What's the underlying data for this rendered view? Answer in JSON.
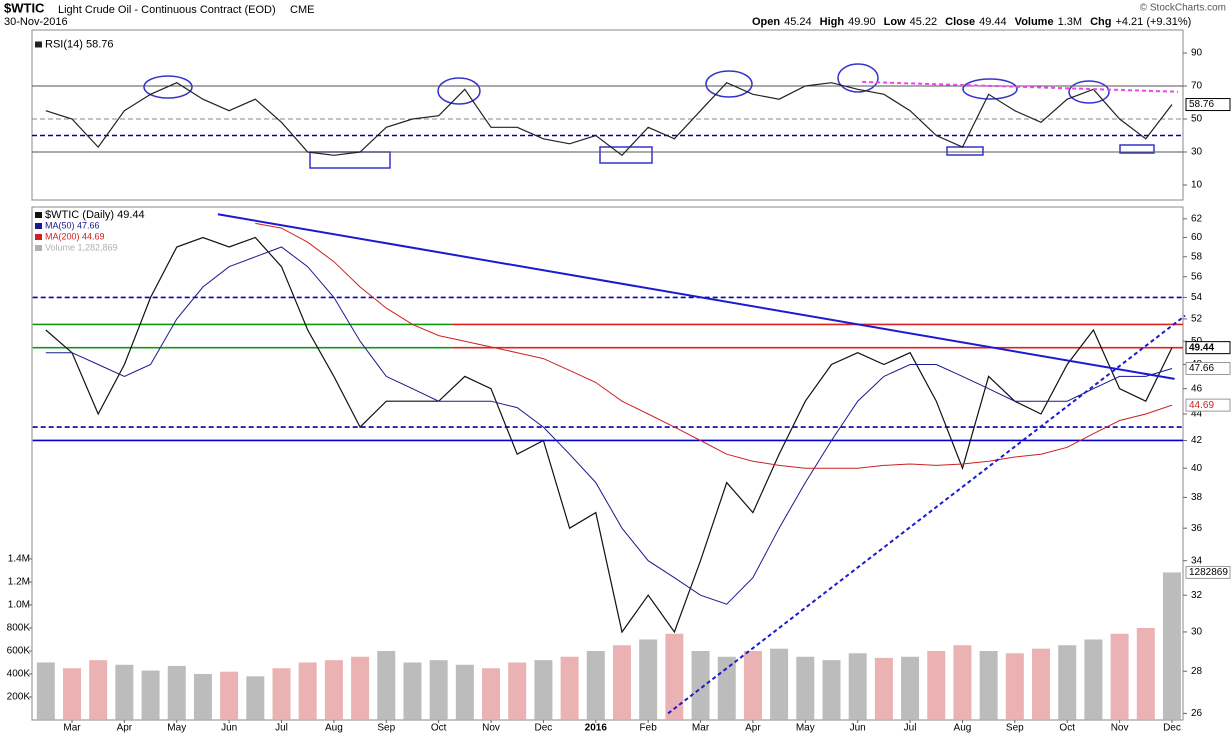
{
  "header": {
    "symbol": "$WTIC",
    "name": "Light Crude Oil - Continuous Contract (EOD)",
    "exchange": "CME",
    "date": "30-Nov-2016",
    "copyright": "© StockCharts.com",
    "quote": [
      {
        "label": "Open",
        "value": "45.24"
      },
      {
        "label": "High",
        "value": "49.90"
      },
      {
        "label": "Low",
        "value": "45.22"
      },
      {
        "label": "Close",
        "value": "49.44"
      },
      {
        "label": "Volume",
        "value": "1.3M"
      },
      {
        "label": "Chg",
        "value": "+4.21 (+9.31%)"
      }
    ]
  },
  "chart_data": [
    {
      "type": "line",
      "series": [
        {
          "name": "RSI(14) 58.76",
          "color": "#222222",
          "values": [
            55,
            50,
            33,
            55,
            65,
            72,
            62,
            55,
            62,
            48,
            30,
            28,
            30,
            45,
            50,
            52,
            68,
            45,
            45,
            38,
            35,
            40,
            28,
            45,
            38,
            55,
            72,
            65,
            62,
            70,
            72,
            68,
            65,
            55,
            40,
            33,
            65,
            55,
            48,
            62,
            68,
            50,
            38,
            58.76
          ]
        }
      ],
      "ylim": [
        0,
        100
      ],
      "yticks": [
        10,
        30,
        50,
        70,
        90
      ],
      "hlines": [
        {
          "value": 70,
          "color": "#555555",
          "dash": false
        },
        {
          "value": 30,
          "color": "#555555",
          "dash": false
        },
        {
          "value": 50,
          "color": "#888888",
          "dash": true
        },
        {
          "value": 40,
          "color": "#0000aa",
          "dash": true
        }
      ],
      "trendlines": [
        {
          "x": [
            31.17,
            43.23
          ],
          "values": [
            72.5,
            66.5
          ],
          "color": "#ee44ee",
          "dash": true
        }
      ]
    },
    {
      "type": "line",
      "log": true,
      "categories": [
        null,
        "Mar",
        null,
        "Apr",
        null,
        "May",
        null,
        "Jun",
        null,
        "Jul",
        null,
        "Aug",
        null,
        "Sep",
        null,
        "Oct",
        null,
        "Nov",
        null,
        "Dec",
        null,
        "2016",
        null,
        "Feb",
        null,
        "Mar",
        null,
        "Apr",
        null,
        "May",
        null,
        "Jun",
        null,
        "Jul",
        null,
        "Aug",
        null,
        "Sep",
        null,
        "Oct",
        null,
        "Nov",
        null,
        "Dec"
      ],
      "series": [
        {
          "name": "$WTIC (Daily) 49.44",
          "color": "#111111",
          "values": [
            51,
            49,
            44,
            48,
            54,
            59,
            60,
            59,
            60,
            57,
            51,
            47,
            43,
            45,
            45,
            45,
            47,
            46,
            41,
            42,
            36,
            37,
            30,
            32,
            30,
            34,
            39,
            37,
            41,
            45,
            48,
            49,
            48,
            49,
            45,
            40,
            47,
            45,
            44,
            48,
            51,
            46,
            45,
            49.44
          ]
        },
        {
          "name": "MA(50) 47.66",
          "color": "#1a1a8c",
          "values": [
            49,
            49,
            48,
            47,
            48,
            52,
            55,
            57,
            58,
            59,
            57,
            54,
            50,
            47,
            46,
            45,
            45,
            45,
            44.5,
            43,
            41,
            39,
            36,
            34,
            33,
            32,
            31.5,
            33,
            36,
            39,
            42,
            45,
            47,
            48,
            48,
            47,
            46,
            45,
            45,
            45,
            46,
            47,
            47,
            47.66
          ]
        },
        {
          "name": "MA(200) 44.69",
          "color": "#cc2222",
          "values": [
            null,
            null,
            null,
            null,
            null,
            null,
            null,
            null,
            61.5,
            61,
            59.5,
            57.5,
            55,
            53,
            51.5,
            50.5,
            50,
            49.5,
            49,
            48.5,
            47.5,
            46.5,
            45,
            44,
            43,
            42,
            41,
            40.5,
            40.2,
            40,
            40,
            40,
            40.2,
            40.3,
            40.2,
            40.3,
            40.5,
            40.8,
            41,
            41.5,
            42.5,
            43.5,
            44,
            44.69
          ]
        },
        {
          "name": "Volume 1,282,869",
          "color": "#b0b0b0",
          "axis": "y2",
          "style": "bar",
          "values": [
            500000,
            450000,
            520000,
            480000,
            430000,
            470000,
            400000,
            420000,
            380000,
            450000,
            500000,
            520000,
            550000,
            600000,
            500000,
            520000,
            480000,
            450000,
            500000,
            520000,
            550000,
            600000,
            650000,
            700000,
            750000,
            600000,
            550000,
            600000,
            620000,
            550000,
            520000,
            580000,
            540000,
            550000,
            600000,
            650000,
            600000,
            580000,
            620000,
            650000,
            700000,
            750000,
            800000,
            1282869
          ]
        }
      ],
      "ylim": [
        25.7,
        63.3
      ],
      "yticks": [
        26,
        28,
        30,
        32,
        34,
        36,
        38,
        40,
        42,
        44,
        46,
        48,
        50,
        52,
        54,
        56,
        58,
        60,
        62
      ],
      "y2lim": [
        0,
        4460000
      ],
      "y2ticks": [
        {
          "value": 200000,
          "label": "200K"
        },
        {
          "value": 400000,
          "label": "400K"
        },
        {
          "value": 600000,
          "label": "600K"
        },
        {
          "value": 800000,
          "label": "800K"
        },
        {
          "value": 1000000,
          "label": "1.0M"
        },
        {
          "value": 1200000,
          "label": "1.2M"
        },
        {
          "value": 1400000,
          "label": "1.4M"
        }
      ],
      "hlines": [
        {
          "value": 54,
          "color": "#0000cc",
          "dash": true,
          "x": [
            -0.5,
            43.5
          ]
        },
        {
          "value": 51.5,
          "color": "#119911",
          "dash": false,
          "x": [
            -0.5,
            15.5
          ]
        },
        {
          "value": 49.44,
          "color": "#119911",
          "dash": false,
          "x": [
            -0.5,
            15.5
          ]
        },
        {
          "value": 51.5,
          "color": "#dd2222",
          "dash": false,
          "x": [
            15.5,
            43.5
          ]
        },
        {
          "value": 49.44,
          "color": "#dd2222",
          "dash": false,
          "x": [
            15.5,
            43.5
          ]
        },
        {
          "value": 43,
          "color": "#0000aa",
          "dash": true,
          "x": [
            -0.5,
            43.5
          ]
        },
        {
          "value": 42,
          "color": "#0000cc",
          "dash": false,
          "x": [
            -0.5,
            43.5
          ]
        }
      ],
      "trendlines": [
        {
          "x": [
            6.57,
            43.1
          ],
          "values": [
            62.5,
            46.8
          ],
          "color": "#1a1ad0",
          "dash": false
        },
        {
          "x": [
            23.76,
            43.5
          ],
          "values": [
            26,
            52.3
          ],
          "color": "#1a1ad0",
          "dash": true
        }
      ]
    }
  ]
}
